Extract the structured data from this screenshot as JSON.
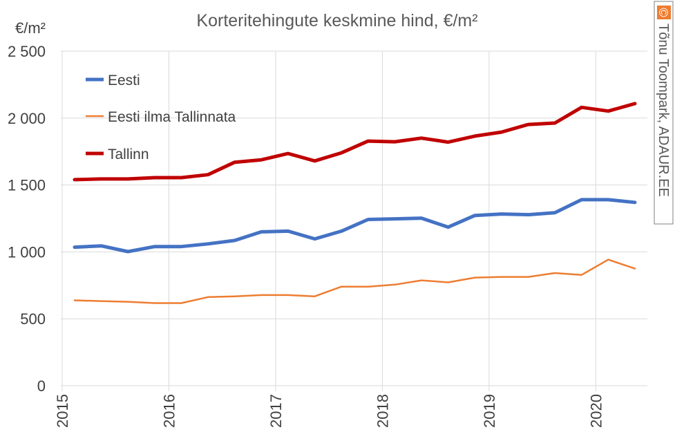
{
  "chart_data": {
    "type": "line",
    "title": "Korteritehingute keskmine hind, €/m²",
    "ylabel": "€/m²",
    "xlabel": "",
    "ylim": [
      0,
      2500
    ],
    "yticks": [
      0,
      500,
      1000,
      1500,
      2000,
      2500
    ],
    "ytick_labels": [
      "0",
      "500",
      "1 000",
      "1 500",
      "2 000",
      "2 500"
    ],
    "x_tick_labels": [
      "2015",
      "2016",
      "2017",
      "2018",
      "2019",
      "2020"
    ],
    "x": [
      "2015 Q1",
      "2015 Q2",
      "2015 Q3",
      "2015 Q4",
      "2016 Q1",
      "2016 Q2",
      "2016 Q3",
      "2016 Q4",
      "2017 Q1",
      "2017 Q2",
      "2017 Q3",
      "2017 Q4",
      "2018 Q1",
      "2018 Q2",
      "2018 Q3",
      "2018 Q4",
      "2019 Q1",
      "2019 Q2",
      "2019 Q3",
      "2019 Q4",
      "2020 Q1",
      "2020 Q2"
    ],
    "grid": true,
    "legend_position": "top-left",
    "series": [
      {
        "name": "Eesti",
        "color": "#4472c4",
        "width": "thick",
        "values": [
          1035,
          1045,
          1002,
          1040,
          1040,
          1060,
          1085,
          1150,
          1155,
          1097,
          1155,
          1242,
          1247,
          1252,
          1185,
          1272,
          1283,
          1278,
          1293,
          1390,
          1390,
          1370
        ]
      },
      {
        "name": "Eesti ilma Tallinnata",
        "color": "#ed7d31",
        "width": "thin",
        "values": [
          638,
          632,
          627,
          617,
          617,
          662,
          668,
          677,
          677,
          668,
          740,
          740,
          755,
          787,
          772,
          808,
          813,
          813,
          842,
          828,
          942,
          875
        ]
      },
      {
        "name": "Tallinn",
        "color": "#c00000",
        "width": "thick",
        "values": [
          1540,
          1545,
          1545,
          1555,
          1555,
          1577,
          1670,
          1688,
          1735,
          1680,
          1740,
          1828,
          1823,
          1850,
          1820,
          1865,
          1895,
          1952,
          1963,
          2080,
          2052,
          2108
        ]
      }
    ]
  },
  "credit": {
    "symbol": "©",
    "text": "Tõnu Toompark, ADAUR.EE"
  }
}
